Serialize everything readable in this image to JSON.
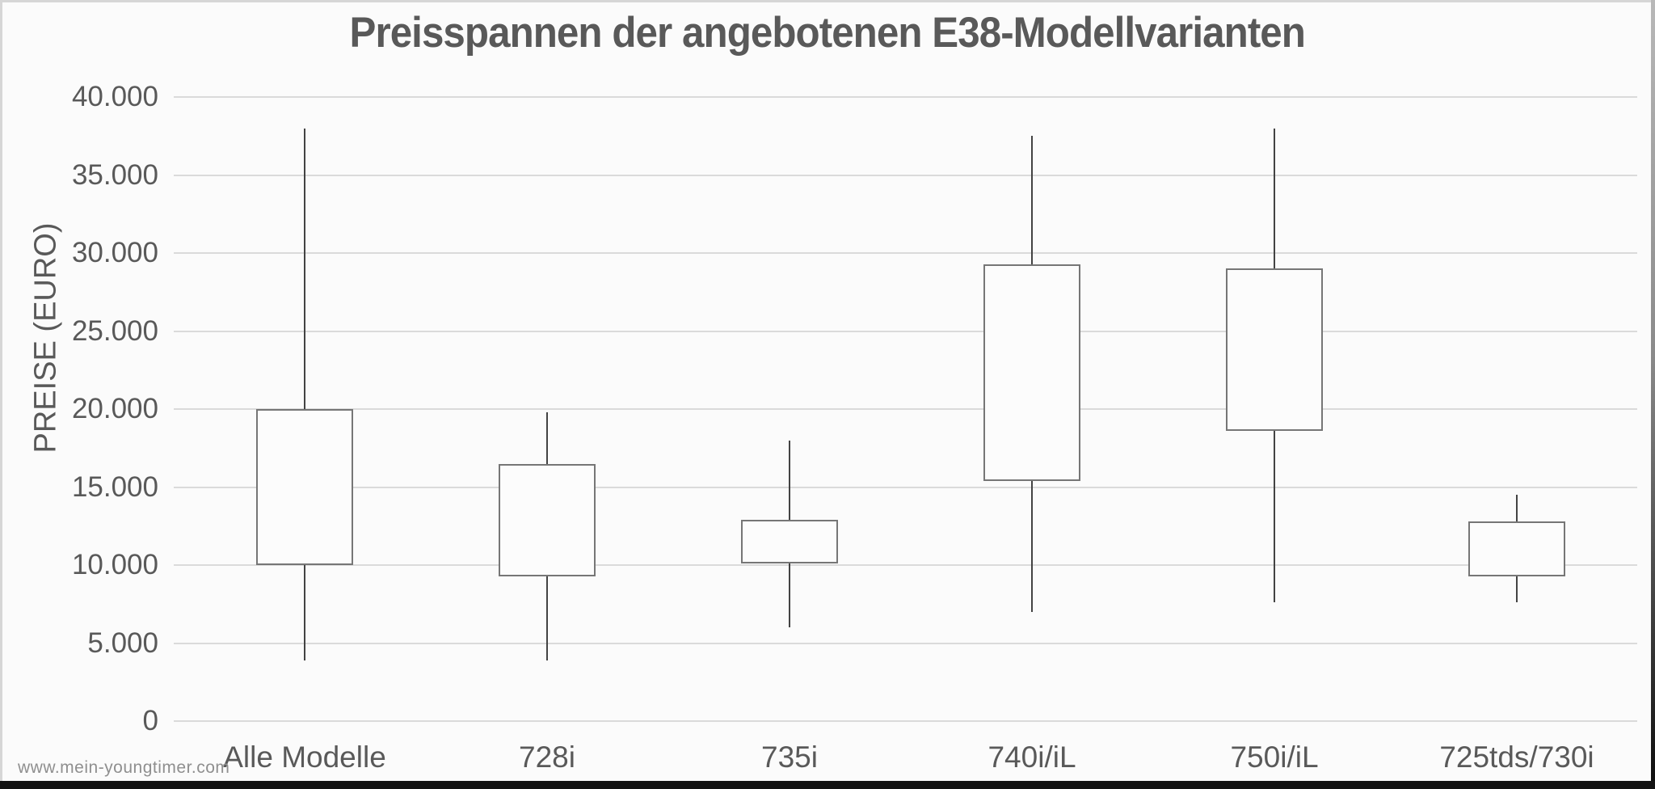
{
  "page": {
    "watermark": "www.mein-youngtimer.com"
  },
  "chart_data": {
    "type": "boxplot",
    "title": "Preisspannen der angebotenen E38-Modellvarianten",
    "xlabel": "",
    "ylabel": "PREISE (EURO)",
    "ylim": [
      0,
      40000
    ],
    "grid": true,
    "legend": false,
    "ytick_values": [
      0,
      5000,
      10000,
      15000,
      20000,
      25000,
      30000,
      35000,
      40000
    ],
    "ytick_labels": [
      "0",
      "5.000",
      "10.000",
      "15.000",
      "20.000",
      "25.000",
      "30.000",
      "35.000",
      "40.000"
    ],
    "categories": [
      "Alle Modelle",
      "728i",
      "735i",
      "740i/iL",
      "750i/iL",
      "725tds/730i"
    ],
    "series": [
      {
        "label": "Alle Modelle",
        "min": 3900,
        "box_lower": 10000,
        "box_upper": 20000,
        "max": 38000
      },
      {
        "label": "728i",
        "min": 3900,
        "box_lower": 9300,
        "box_upper": 16500,
        "max": 19800
      },
      {
        "label": "735i",
        "min": 6000,
        "box_lower": 10100,
        "box_upper": 12900,
        "max": 18000
      },
      {
        "label": "740i/iL",
        "min": 7000,
        "box_lower": 15400,
        "box_upper": 29300,
        "max": 37500
      },
      {
        "label": "750i/iL",
        "min": 7600,
        "box_lower": 18600,
        "box_upper": 29000,
        "max": 38000
      },
      {
        "label": "725tds/730i",
        "min": 7600,
        "box_lower": 9300,
        "box_upper": 12800,
        "max": 14500
      }
    ],
    "colors": {
      "text": "#595959",
      "gridline": "#dadada",
      "box_border": "#767676",
      "box_fill": "#fcfcfc",
      "whisker": "#434343",
      "background": "#fbfbfb",
      "watermark": "#8f8f8f"
    }
  }
}
